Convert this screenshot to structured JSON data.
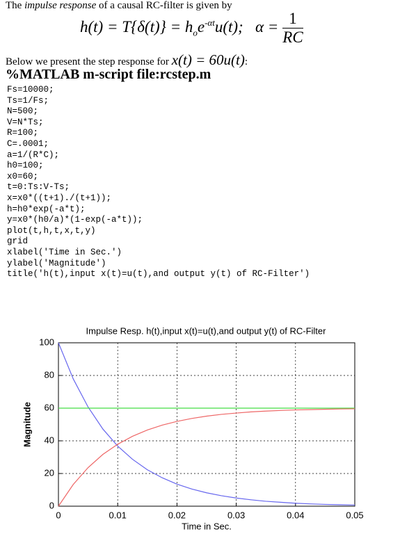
{
  "intro": [
    "The ",
    "impulse response",
    " of a causal RC-filter is given by"
  ],
  "equation": {
    "lhs": "h(t) = T{δ(t)} = h",
    "sub": "o",
    "base": "e",
    "exp": "-αt",
    "rest": "u(t);   α =",
    "num": "1",
    "den": "RC"
  },
  "step_text": {
    "before": "Below we present the step response for ",
    "signal": "x(t) = 60u(t)",
    "after": ":"
  },
  "heading": "%MATLAB m-script file:rcstep.m",
  "code": [
    "Fs=10000;",
    "Ts=1/Fs;",
    "N=500;",
    "V=N*Ts;",
    "R=100;",
    "C=.0001;",
    "a=1/(R*C);",
    "h0=100;",
    "x0=60;",
    "t=0:Ts:V-Ts;",
    "x=x0*((t+1)./(t+1));",
    "h=h0*exp(-a*t);",
    "y=x0*(h0/a)*(1-exp(-a*t));",
    "plot(t,h,t,x,t,y)",
    "grid",
    "xlabel('Time in Sec.')",
    "ylabel('Magnitude')",
    "title('h(t),input x(t)=u(t),and output y(t) of RC-Filter')"
  ],
  "chart_data": {
    "type": "line",
    "title": "Impulse Resp. h(t),input x(t)=u(t),and output y(t) of RC-Filter",
    "xlabel": "Time in Sec.",
    "ylabel": "Magnitude",
    "x": [
      0,
      0.0025,
      0.005,
      0.0075,
      0.01,
      0.0125,
      0.015,
      0.0175,
      0.02,
      0.0225,
      0.025,
      0.0275,
      0.03,
      0.0325,
      0.035,
      0.0375,
      0.04,
      0.0425,
      0.045,
      0.0475,
      0.05
    ],
    "series": [
      {
        "color": "#6666ee",
        "values": [
          100,
          77.9,
          60.7,
          47.2,
          36.8,
          28.7,
          22.3,
          17.4,
          13.5,
          10.5,
          8.2,
          6.4,
          5.0,
          3.9,
          3.0,
          2.4,
          1.8,
          1.4,
          1.1,
          0.9,
          0.7
        ]
      },
      {
        "color": "#44dd44",
        "values": [
          60,
          60,
          60,
          60,
          60,
          60,
          60,
          60,
          60,
          60,
          60,
          60,
          60,
          60,
          60,
          60,
          60,
          60,
          60,
          60,
          60
        ]
      },
      {
        "color": "#ee6666",
        "values": [
          0,
          13.3,
          23.6,
          31.7,
          37.9,
          42.8,
          46.6,
          49.6,
          51.9,
          53.7,
          55.1,
          56.2,
          57.0,
          57.7,
          58.2,
          58.6,
          58.9,
          59.1,
          59.3,
          59.5,
          59.6
        ]
      }
    ],
    "xlim": [
      0,
      0.05
    ],
    "xticks": [
      0,
      0.01,
      0.02,
      0.03,
      0.04,
      0.05
    ],
    "ylim": [
      0,
      100
    ],
    "yticks": [
      0,
      20,
      40,
      60,
      80,
      100
    ],
    "grid": true
  }
}
